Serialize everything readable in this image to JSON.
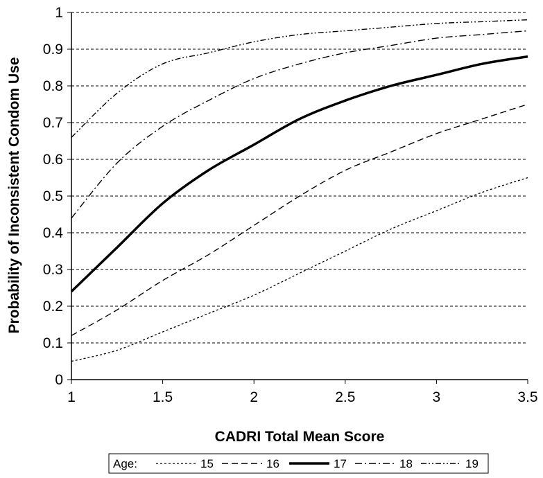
{
  "chart_data": {
    "type": "line",
    "title": "",
    "xlabel": "CADRI Total Mean Score",
    "ylabel": "Probability of Inconsistent Condom Use",
    "xlim": [
      1,
      3.5
    ],
    "ylim": [
      0,
      1
    ],
    "x_ticks": [
      1,
      1.5,
      2,
      2.5,
      3,
      3.5
    ],
    "x_tick_labels": [
      "1",
      "1.5",
      "2",
      "2.5",
      "3",
      "3.5"
    ],
    "y_ticks": [
      0,
      0.1,
      0.2,
      0.3,
      0.4,
      0.5,
      0.6,
      0.7,
      0.8,
      0.9,
      1
    ],
    "y_tick_labels": [
      "0",
      "0.1",
      "0.2",
      "0.3",
      "0.4",
      "0.5",
      "0.6",
      "0.7",
      "0.8",
      "0.9",
      "1"
    ],
    "grid": "horizontal dashed",
    "legend": {
      "title": "Age:",
      "placement": "bottom"
    },
    "x": [
      1.0,
      1.25,
      1.5,
      1.75,
      2.0,
      2.25,
      2.5,
      2.75,
      3.0,
      3.25,
      3.5
    ],
    "series": [
      {
        "name": "15",
        "style": "dotted",
        "color": "#000000",
        "values": [
          0.05,
          0.08,
          0.13,
          0.18,
          0.23,
          0.29,
          0.35,
          0.41,
          0.46,
          0.51,
          0.55
        ]
      },
      {
        "name": "16",
        "style": "dashed",
        "color": "#000000",
        "values": [
          0.12,
          0.19,
          0.27,
          0.34,
          0.42,
          0.5,
          0.57,
          0.62,
          0.67,
          0.71,
          0.75
        ]
      },
      {
        "name": "17",
        "style": "solid-bold",
        "color": "#000000",
        "values": [
          0.24,
          0.36,
          0.48,
          0.57,
          0.64,
          0.71,
          0.76,
          0.8,
          0.83,
          0.86,
          0.88
        ]
      },
      {
        "name": "18",
        "style": "dash-dot",
        "color": "#000000",
        "values": [
          0.44,
          0.59,
          0.69,
          0.76,
          0.82,
          0.86,
          0.89,
          0.91,
          0.93,
          0.94,
          0.95
        ]
      },
      {
        "name": "19",
        "style": "dash-dot-dot",
        "color": "#000000",
        "values": [
          0.66,
          0.78,
          0.86,
          0.89,
          0.92,
          0.94,
          0.95,
          0.96,
          0.97,
          0.975,
          0.98
        ]
      }
    ]
  }
}
